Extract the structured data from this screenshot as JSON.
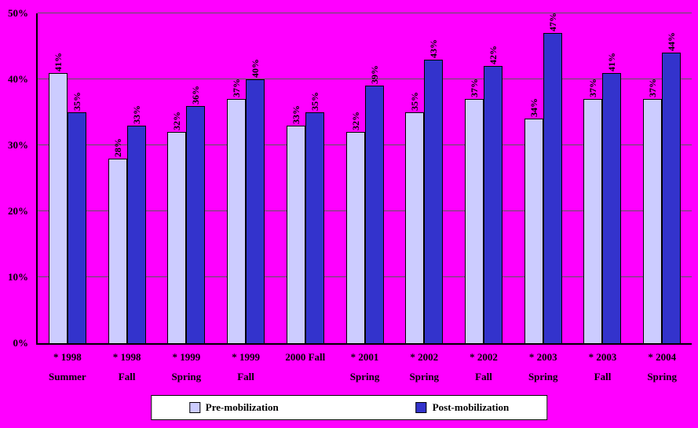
{
  "chart_data": {
    "type": "bar",
    "title": "",
    "xlabel": "",
    "ylabel": "",
    "ylim": [
      0,
      50
    ],
    "yticks": [
      "0%",
      "10%",
      "20%",
      "30%",
      "40%",
      "50%"
    ],
    "grid": true,
    "legend_position": "bottom",
    "value_suffix": "%",
    "categories": [
      {
        "lines": [
          "* 1998",
          "Summer"
        ]
      },
      {
        "lines": [
          "* 1998",
          "Fall"
        ]
      },
      {
        "lines": [
          "* 1999",
          "Spring"
        ]
      },
      {
        "lines": [
          "* 1999",
          "Fall"
        ]
      },
      {
        "lines": [
          "2000 Fall"
        ]
      },
      {
        "lines": [
          "* 2001",
          "Spring"
        ]
      },
      {
        "lines": [
          "* 2002",
          "Spring"
        ]
      },
      {
        "lines": [
          "* 2002",
          "Fall"
        ]
      },
      {
        "lines": [
          "* 2003",
          "Spring"
        ]
      },
      {
        "lines": [
          "* 2003",
          "Fall"
        ]
      },
      {
        "lines": [
          "* 2004",
          "Spring"
        ]
      }
    ],
    "series": [
      {
        "name": "Pre-mobilization",
        "color": "#CCCCFF",
        "values": [
          41,
          28,
          32,
          37,
          33,
          32,
          35,
          37,
          34,
          37,
          37
        ]
      },
      {
        "name": "Post-mobilization",
        "color": "#3333CC",
        "values": [
          35,
          33,
          36,
          40,
          35,
          39,
          43,
          42,
          47,
          41,
          44
        ]
      }
    ],
    "colors": {
      "background": "#FF00FF",
      "gridline": "#5a5a5a",
      "axis": "#000000",
      "label_text": "#000000"
    }
  }
}
